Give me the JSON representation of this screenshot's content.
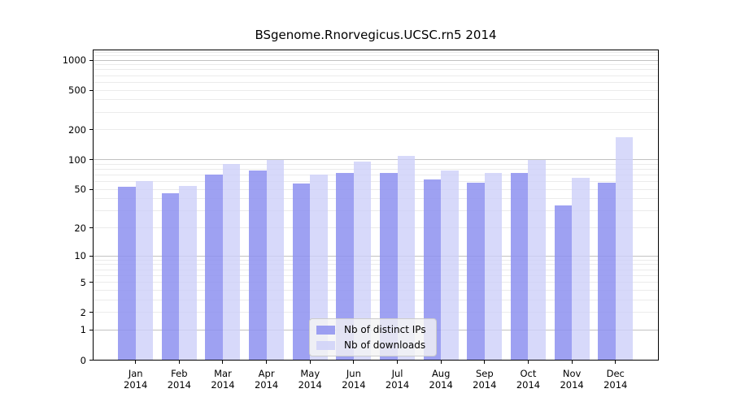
{
  "chart_data": {
    "type": "bar",
    "title": "BSgenome.Rnorvegicus.UCSC.rn5 2014",
    "x": {
      "categories": [
        "Jan",
        "Feb",
        "Mar",
        "Apr",
        "May",
        "Jun",
        "Jul",
        "Aug",
        "Sep",
        "Oct",
        "Nov",
        "Dec"
      ],
      "year": "2014"
    },
    "series": [
      {
        "name": "Nb of distinct IPs",
        "color_key": "distinct_ips",
        "values": [
          53,
          46,
          71,
          78,
          57,
          74,
          73,
          63,
          59,
          73,
          34,
          59
        ]
      },
      {
        "name": "Nb of downloads",
        "color_key": "downloads",
        "values": [
          61,
          54,
          90,
          100,
          71,
          95,
          110,
          78,
          74,
          100,
          66,
          168
        ]
      }
    ],
    "y_axis": {
      "scale": "log10(1+x)",
      "ticks": [
        0,
        1,
        2,
        5,
        10,
        20,
        50,
        100,
        200,
        500,
        1000
      ],
      "range": [
        0,
        1276
      ],
      "major_gridlines": [
        1,
        10,
        100,
        1000
      ],
      "minor_gridlines": [
        2,
        3,
        4,
        5,
        6,
        7,
        8,
        9,
        20,
        30,
        40,
        50,
        60,
        70,
        80,
        90,
        200,
        300,
        400,
        500,
        600,
        700,
        800,
        900,
        1100,
        1200
      ]
    },
    "legend": {
      "position": "lower center"
    },
    "colors": {
      "distinct_ips": "rgba(141,144,240,0.85)",
      "downloads": "rgba(205,208,249,0.8)",
      "grid_major": "#c2c2c2",
      "grid_minor": "#ebebeb",
      "axis": "#000000",
      "legend_bg": "rgba(244,244,244,0.8)",
      "legend_border": "#cccccc"
    }
  }
}
